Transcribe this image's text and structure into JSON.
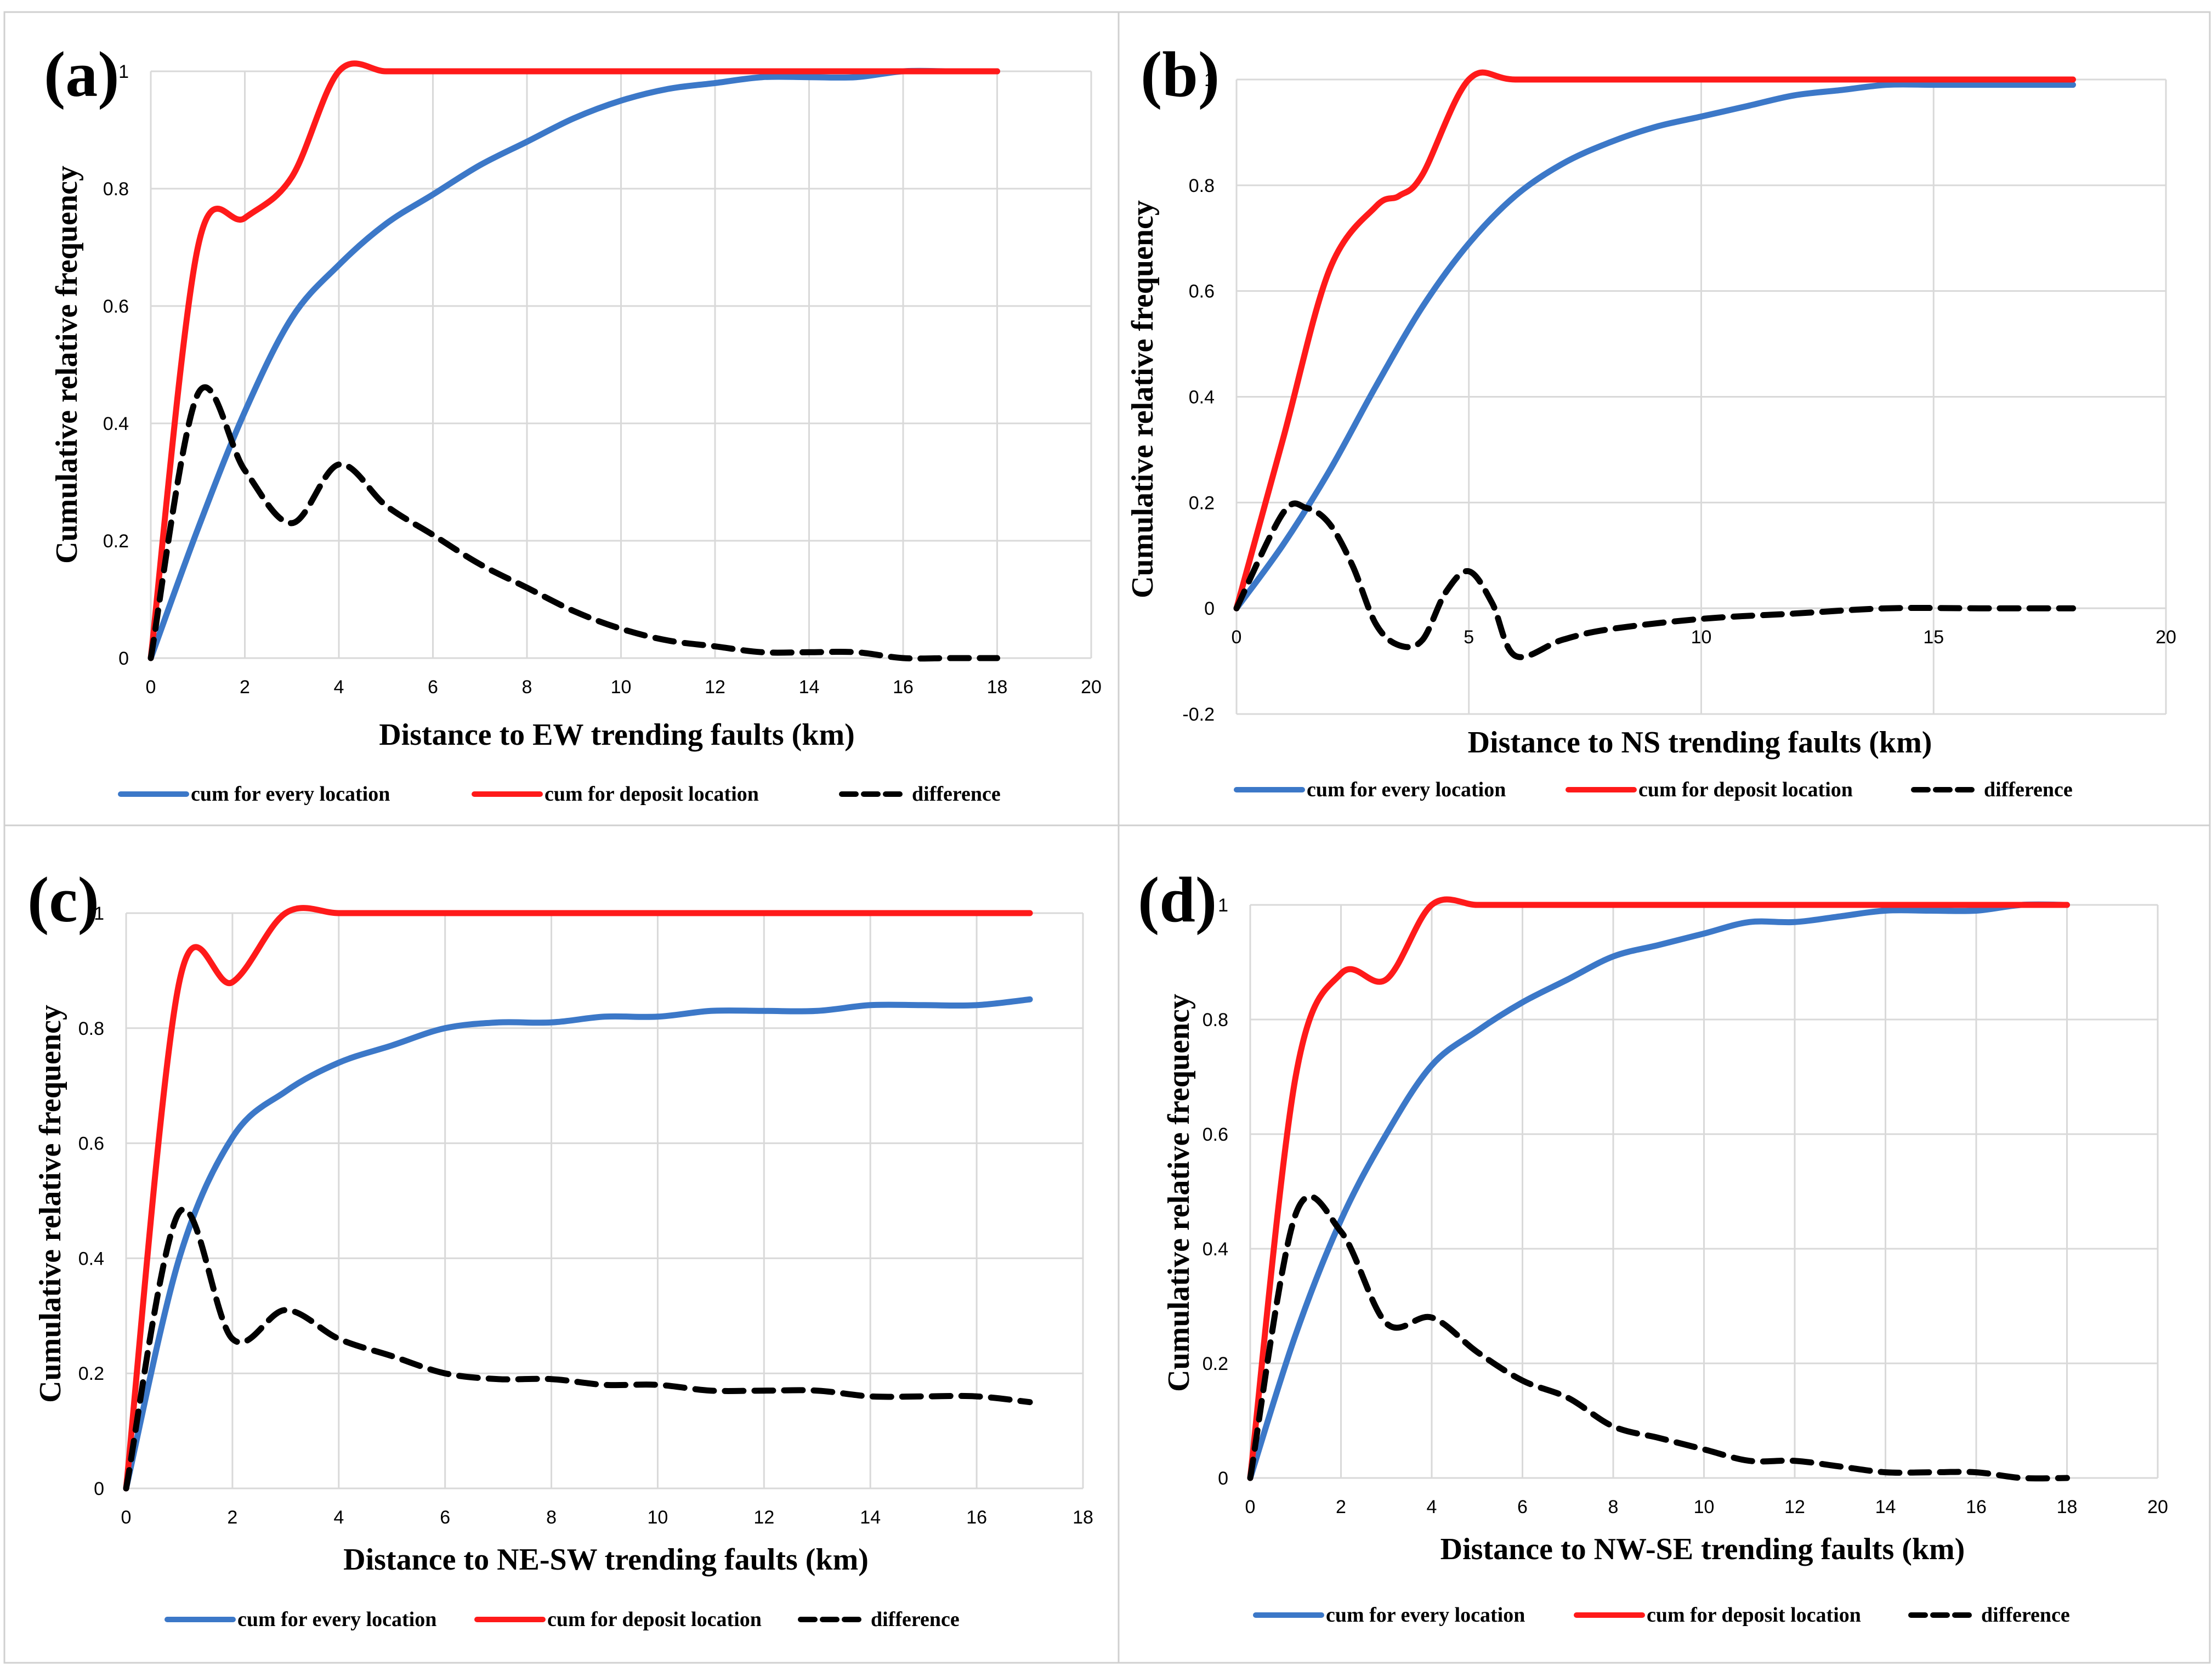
{
  "colors": {
    "every": "#3c78c8",
    "deposit": "#ff1a1a",
    "difference": "#000000",
    "grid": "#d9d9d9"
  },
  "legend": {
    "every": "cum for every location",
    "deposit": "cum for deposit location",
    "difference": "difference"
  },
  "chart_data": [
    {
      "type": "line",
      "panel": "(a)",
      "xlabel": "Distance to EW trending faults (km)",
      "ylabel": "Cumulative  relative  frequency",
      "xlim": [
        0,
        20
      ],
      "xticks": [
        0,
        2,
        4,
        6,
        8,
        10,
        12,
        14,
        16,
        18,
        20
      ],
      "ylim": [
        0,
        1
      ],
      "yticks": [
        0,
        0.2,
        0.4,
        0.6,
        0.8,
        1
      ],
      "series": [
        {
          "name": "cum for every location",
          "key": "every",
          "x": [
            0,
            1,
            2,
            3,
            4,
            5,
            6,
            7,
            8,
            9,
            10,
            11,
            12,
            13,
            14,
            15,
            16,
            17,
            18
          ],
          "y": [
            0,
            0.22,
            0.42,
            0.58,
            0.67,
            0.74,
            0.79,
            0.84,
            0.88,
            0.92,
            0.95,
            0.97,
            0.98,
            0.99,
            0.99,
            0.99,
            1,
            1,
            1
          ]
        },
        {
          "name": "cum for deposit location",
          "key": "deposit",
          "x": [
            0,
            1,
            2,
            3,
            4,
            5,
            6,
            8,
            10,
            12,
            14,
            16,
            18
          ],
          "y": [
            0,
            0.7,
            0.75,
            0.82,
            1,
            1,
            1,
            1,
            1,
            1,
            1,
            1,
            1
          ]
        },
        {
          "name": "difference",
          "key": "difference",
          "x": [
            0,
            1,
            2,
            3,
            4,
            5,
            6,
            7,
            8,
            9,
            10,
            11,
            12,
            13,
            14,
            15,
            16,
            17,
            18
          ],
          "y": [
            0,
            0.45,
            0.32,
            0.23,
            0.33,
            0.26,
            0.21,
            0.16,
            0.12,
            0.08,
            0.05,
            0.03,
            0.02,
            0.01,
            0.01,
            0.01,
            0,
            0,
            0
          ]
        }
      ]
    },
    {
      "type": "line",
      "panel": "(b)",
      "xlabel": "Distance to NS trending faults (km)",
      "ylabel": "Cumulative  relative  frequency",
      "xlim": [
        0,
        20
      ],
      "xticks": [
        0,
        5,
        10,
        15,
        20
      ],
      "ylim": [
        -0.2,
        1
      ],
      "yticks": [
        -0.2,
        0,
        0.2,
        0.4,
        0.6,
        0.8,
        1
      ],
      "series": [
        {
          "name": "cum for every location",
          "key": "every",
          "x": [
            0,
            1,
            2,
            3,
            4,
            5,
            6,
            7,
            8,
            9,
            10,
            11,
            12,
            13,
            14,
            15,
            16,
            17,
            18
          ],
          "y": [
            0,
            0.12,
            0.26,
            0.42,
            0.57,
            0.69,
            0.78,
            0.84,
            0.88,
            0.91,
            0.93,
            0.95,
            0.97,
            0.98,
            0.99,
            0.99,
            0.99,
            0.99,
            0.99
          ]
        },
        {
          "name": "cum for deposit location",
          "key": "deposit",
          "x": [
            0,
            1,
            2,
            3,
            3.5,
            4,
            5,
            6,
            8,
            10,
            12,
            14,
            16,
            18
          ],
          "y": [
            0,
            0.32,
            0.64,
            0.76,
            0.78,
            0.82,
            1,
            1,
            1,
            1,
            1,
            1,
            1,
            1
          ]
        },
        {
          "name": "difference",
          "key": "difference",
          "x": [
            0,
            1,
            1.5,
            2,
            2.5,
            3,
            3.5,
            4,
            4.5,
            5,
            5.5,
            6,
            7,
            8,
            10,
            12,
            14,
            16,
            18
          ],
          "y": [
            0,
            0.18,
            0.19,
            0.16,
            0.08,
            -0.03,
            -0.07,
            -0.06,
            0.03,
            0.07,
            0.01,
            -0.09,
            -0.06,
            -0.04,
            -0.02,
            -0.01,
            0,
            0,
            0
          ]
        }
      ]
    },
    {
      "type": "line",
      "panel": "(c)",
      "xlabel": "Distance to NE-SW trending faults (km)",
      "ylabel": "Cumulative  relative  frequency",
      "xlim": [
        0,
        18
      ],
      "xticks": [
        0,
        2,
        4,
        6,
        8,
        10,
        12,
        14,
        16,
        18
      ],
      "ylim": [
        0,
        1
      ],
      "yticks": [
        0,
        0.2,
        0.4,
        0.6,
        0.8,
        1
      ],
      "series": [
        {
          "name": "cum for every location",
          "key": "every",
          "x": [
            0,
            1,
            2,
            3,
            4,
            5,
            6,
            7,
            8,
            9,
            10,
            11,
            12,
            13,
            14,
            15,
            16,
            17
          ],
          "y": [
            0,
            0.4,
            0.61,
            0.69,
            0.74,
            0.77,
            0.8,
            0.81,
            0.81,
            0.82,
            0.82,
            0.83,
            0.83,
            0.83,
            0.84,
            0.84,
            0.84,
            0.85
          ]
        },
        {
          "name": "cum for deposit location",
          "key": "deposit",
          "x": [
            0,
            1,
            2,
            3,
            4,
            5,
            6,
            8,
            10,
            12,
            14,
            16,
            17
          ],
          "y": [
            0,
            0.88,
            0.88,
            1,
            1,
            1,
            1,
            1,
            1,
            1,
            1,
            1,
            1
          ]
        },
        {
          "name": "difference",
          "key": "difference",
          "x": [
            0,
            1,
            2,
            3,
            4,
            5,
            6,
            7,
            8,
            9,
            10,
            11,
            12,
            13,
            14,
            15,
            16,
            17
          ],
          "y": [
            0,
            0.48,
            0.26,
            0.31,
            0.26,
            0.23,
            0.2,
            0.19,
            0.19,
            0.18,
            0.18,
            0.17,
            0.17,
            0.17,
            0.16,
            0.16,
            0.16,
            0.15
          ]
        }
      ]
    },
    {
      "type": "line",
      "panel": "(d)",
      "xlabel": "Distance to NW-SE trending faults (km)",
      "ylabel": "Cumulative  relative  frequency",
      "xlim": [
        0,
        20
      ],
      "xticks": [
        0,
        2,
        4,
        6,
        8,
        10,
        12,
        14,
        16,
        18,
        20
      ],
      "ylim": [
        0,
        1
      ],
      "yticks": [
        0,
        0.2,
        0.4,
        0.6,
        0.8,
        1
      ],
      "series": [
        {
          "name": "cum for every location",
          "key": "every",
          "x": [
            0,
            1,
            2,
            3,
            4,
            5,
            6,
            7,
            8,
            9,
            10,
            11,
            12,
            13,
            14,
            15,
            16,
            17,
            18
          ],
          "y": [
            0,
            0.25,
            0.45,
            0.6,
            0.72,
            0.78,
            0.83,
            0.87,
            0.91,
            0.93,
            0.95,
            0.97,
            0.97,
            0.98,
            0.99,
            0.99,
            0.99,
            1,
            1
          ]
        },
        {
          "name": "cum for deposit location",
          "key": "deposit",
          "x": [
            0,
            1,
            2,
            3,
            4,
            5,
            6,
            8,
            10,
            12,
            14,
            16,
            18
          ],
          "y": [
            0,
            0.7,
            0.88,
            0.87,
            1,
            1,
            1,
            1,
            1,
            1,
            1,
            1,
            1
          ]
        },
        {
          "name": "difference",
          "key": "difference",
          "x": [
            0,
            1,
            2,
            3,
            4,
            5,
            6,
            7,
            8,
            9,
            10,
            11,
            12,
            13,
            14,
            15,
            16,
            17,
            18
          ],
          "y": [
            0,
            0.46,
            0.43,
            0.27,
            0.28,
            0.22,
            0.17,
            0.14,
            0.09,
            0.07,
            0.05,
            0.03,
            0.03,
            0.02,
            0.01,
            0.01,
            0.01,
            0,
            0
          ]
        }
      ]
    }
  ]
}
